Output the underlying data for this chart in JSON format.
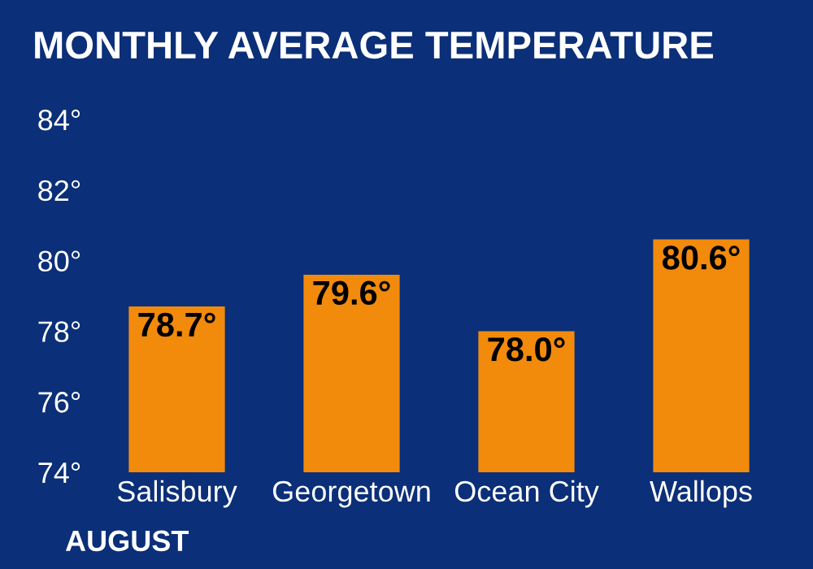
{
  "chart_data": {
    "type": "bar",
    "title": "MONTHLY AVERAGE TEMPERATURE",
    "categories": [
      "Salisbury",
      "Georgetown",
      "Ocean City",
      "Wallops"
    ],
    "values": [
      78.7,
      79.6,
      78.0,
      80.6
    ],
    "value_labels": [
      "78.7°",
      "79.6°",
      "78.0°",
      "80.6°"
    ],
    "color": "#f28a0c",
    "ylim": [
      74,
      84
    ],
    "yticks": [
      {
        "value": 74,
        "label": "74°"
      },
      {
        "value": 76,
        "label": "76°"
      },
      {
        "value": 78,
        "label": "78°"
      },
      {
        "value": 80,
        "label": "80°"
      },
      {
        "value": 82,
        "label": "82°"
      },
      {
        "value": 84,
        "label": "84°"
      }
    ],
    "grid": false,
    "annotations": [
      "AUGUST"
    ]
  }
}
